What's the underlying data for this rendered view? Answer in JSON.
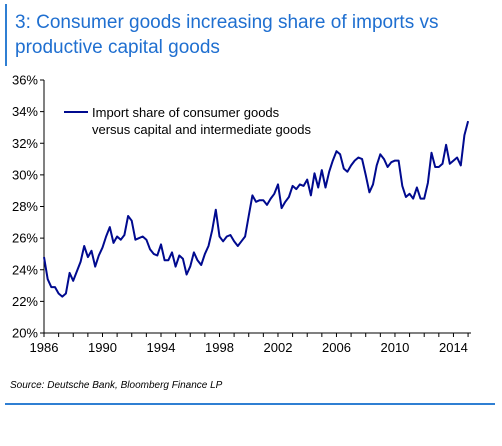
{
  "header": {
    "title": "3: Consumer goods increasing share of imports vs\nproductive capital goods"
  },
  "footer": {
    "source": "Source:  Deutsche Bank, Bloomberg Finance LP"
  },
  "colors": {
    "accent": "#1f6fd0",
    "series": "#000a8f"
  },
  "chart_data": {
    "type": "line",
    "title": "",
    "xlabel": "",
    "ylabel": "",
    "xlim": [
      1986,
      2015.2
    ],
    "ylim": [
      20,
      36
    ],
    "y_ticks": [
      "20%",
      "22%",
      "24%",
      "26%",
      "28%",
      "30%",
      "32%",
      "34%",
      "36%"
    ],
    "x_ticks": [
      "1986",
      "1990",
      "1994",
      "1998",
      "2002",
      "2006",
      "2010",
      "2014"
    ],
    "grid": false,
    "legend_position": "top-left",
    "series": [
      {
        "name": "Import share of consumer goods\nversus capital and intermediate goods",
        "x": [
          1986.0,
          1986.25,
          1986.5,
          1986.75,
          1987.0,
          1987.25,
          1987.5,
          1987.75,
          1988.0,
          1988.25,
          1988.5,
          1988.75,
          1989.0,
          1989.25,
          1989.5,
          1989.75,
          1990.0,
          1990.25,
          1990.5,
          1990.75,
          1991.0,
          1991.25,
          1991.5,
          1991.75,
          1992.0,
          1992.25,
          1992.5,
          1992.75,
          1993.0,
          1993.25,
          1993.5,
          1993.75,
          1994.0,
          1994.25,
          1994.5,
          1994.75,
          1995.0,
          1995.25,
          1995.5,
          1995.75,
          1996.0,
          1996.25,
          1996.5,
          1996.75,
          1997.0,
          1997.25,
          1997.5,
          1997.75,
          1998.0,
          1998.25,
          1998.5,
          1998.75,
          1999.0,
          1999.25,
          1999.5,
          1999.75,
          2000.0,
          2000.25,
          2000.5,
          2000.75,
          2001.0,
          2001.25,
          2001.5,
          2001.75,
          2002.0,
          2002.25,
          2002.5,
          2002.75,
          2003.0,
          2003.25,
          2003.5,
          2003.75,
          2004.0,
          2004.25,
          2004.5,
          2004.75,
          2005.0,
          2005.25,
          2005.5,
          2005.75,
          2006.0,
          2006.25,
          2006.5,
          2006.75,
          2007.0,
          2007.25,
          2007.5,
          2007.75,
          2008.0,
          2008.25,
          2008.5,
          2008.75,
          2009.0,
          2009.25,
          2009.5,
          2009.75,
          2010.0,
          2010.25,
          2010.5,
          2010.75,
          2011.0,
          2011.25,
          2011.5,
          2011.75,
          2012.0,
          2012.25,
          2012.5,
          2012.75,
          2013.0,
          2013.25,
          2013.5,
          2013.75,
          2014.0,
          2014.25,
          2014.5,
          2014.75,
          2015.0
        ],
        "values": [
          24.8,
          23.4,
          22.9,
          22.9,
          22.5,
          22.3,
          22.5,
          23.8,
          23.3,
          23.9,
          24.5,
          25.5,
          24.8,
          25.2,
          24.2,
          24.9,
          25.4,
          26.1,
          26.7,
          25.7,
          26.1,
          25.9,
          26.2,
          27.4,
          27.1,
          25.9,
          26.0,
          26.1,
          25.9,
          25.3,
          25.0,
          24.9,
          25.6,
          24.6,
          24.6,
          25.1,
          24.2,
          24.9,
          24.7,
          23.7,
          24.2,
          25.1,
          24.6,
          24.3,
          25.0,
          25.5,
          26.5,
          27.8,
          26.1,
          25.8,
          26.1,
          26.2,
          25.8,
          25.5,
          25.8,
          26.1,
          27.4,
          28.7,
          28.3,
          28.4,
          28.4,
          28.1,
          28.5,
          28.8,
          29.4,
          27.9,
          28.3,
          28.6,
          29.3,
          29.1,
          29.4,
          29.3,
          29.7,
          28.7,
          30.1,
          29.2,
          30.3,
          29.2,
          30.2,
          30.9,
          31.5,
          31.3,
          30.4,
          30.2,
          30.6,
          30.9,
          31.1,
          31.0,
          30.0,
          28.9,
          29.4,
          30.6,
          31.3,
          31.0,
          30.5,
          30.8,
          30.9,
          30.9,
          29.3,
          28.6,
          28.8,
          28.5,
          29.2,
          28.5,
          28.5,
          29.5,
          31.4,
          30.5,
          30.5,
          30.7,
          31.9,
          30.7,
          30.9,
          31.1,
          30.6,
          32.5,
          33.4
        ]
      }
    ]
  }
}
